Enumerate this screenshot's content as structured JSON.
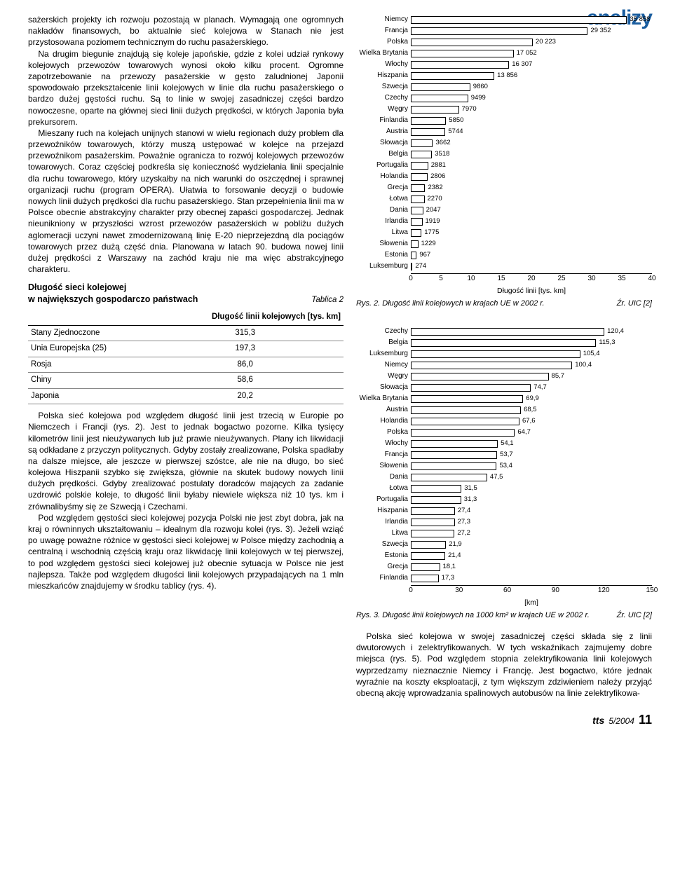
{
  "brand": "analizy",
  "left": {
    "para1": "sażerskich projekty ich rozwoju pozostają w planach. Wymagają one ogromnych nakładów finansowych, bo aktualnie sieć kolejowa w Stanach nie jest przystosowana poziomem technicznym do ruchu pasażerskiego.",
    "para2": "Na drugim biegunie znajdują się koleje japońskie, gdzie z kolei udział rynkowy kolejowych przewozów towarowych wynosi około kilku procent. Ogromne zapotrzebowanie na przewozy pasażerskie w gęsto zaludnionej Japonii spowodowało przekształcenie linii kolejowych w linie dla ruchu pasażerskiego o bardzo dużej gęstości ruchu. Są to linie w swojej zasadniczej części bardzo nowoczesne, oparte na głównej sieci linii dużych prędkości, w których Japonia była prekursorem.",
    "para3": "Mieszany ruch na kolejach unijnych stanowi w wielu regionach duży problem dla przewoźników towarowych, którzy muszą ustępować w kolejce na przejazd przewoźnikom pasażerskim. Poważnie ogranicza to rozwój kolejowych przewozów towarowych. Coraz częściej podkreśla się konieczność wydzielania linii specjalnie dla ruchu towarowego, który uzyskałby na nich warunki do oszczędnej i sprawnej organizacji ruchu (program OPERA). Ułatwia to forsowanie decyzji o budowie nowych linii dużych prędkości dla ruchu pasażerskiego. Stan przepełnienia linii ma w Polsce obecnie abstrakcyjny charakter przy obecnej zapaści gospodarczej. Jednak nieunikniony w przyszłości wzrost przewozów pasażerskich w pobliżu dużych aglomeracji uczyni nawet zmodernizowaną linię E-20 nieprzejezdną dla pociągów towarowych przez dużą część dnia. Planowana w latach 90. budowa nowej linii dużej prędkości z Warszawy na zachód kraju nie ma więc abstrakcyjnego charakteru.",
    "table2_num": "Tablica 2",
    "table2_title": "Długość sieci kolejowej\nw największych gospodarczo państwach",
    "table2_colhead": "Długość linii kolejowych [tys. km]",
    "table2_rows": [
      {
        "country": "Stany Zjednoczone",
        "val": "315,3"
      },
      {
        "country": "Unia Europejska (25)",
        "val": "197,3"
      },
      {
        "country": "Rosja",
        "val": "86,0"
      },
      {
        "country": "Chiny",
        "val": "58,6"
      },
      {
        "country": "Japonia",
        "val": "20,2"
      }
    ],
    "para4": "Polska sieć kolejowa pod względem długość linii jest trzecią w Europie po Niemczech i Francji (rys. 2). Jest to jednak bogactwo pozorne. Kilka tysięcy kilometrów linii jest nieużywanych lub już prawie nieużywanych. Plany ich likwidacji są odkładane z przyczyn politycznych. Gdyby zostały zrealizowane, Polska spadłaby na dalsze miejsce, ale jeszcze w pierwszej szóstce, ale nie na długo, bo sieć kolejowa Hiszpanii szybko się zwiększa, głównie na skutek budowy nowych linii dużych prędkości. Gdyby zrealizować postulaty doradców mających za zadanie uzdrowić polskie koleje, to długość linii byłaby niewiele większa niż 10 tys. km i zrównalibyśmy się ze Szwecją i Czechami.",
    "para5": "Pod względem gęstości sieci kolejowej pozycja Polski nie jest zbyt dobra, jak na kraj o równinnych ukształtowaniu – idealnym dla rozwoju kolei (rys. 3). Jeżeli wziąć po uwagę poważne różnice w gęstości sieci kolejowej w Polsce między zachodnią a centralną i wschodnią częścią kraju oraz likwidację linii kolejowych w tej pierwszej, to pod względem gęstości sieci kolejowej już obecnie sytuacja w Polsce nie jest najlepsza. Także pod względem długości linii kolejowych przypadających na 1 mln mieszkańców znajdujemy w środku tablicy (rys. 4)."
  },
  "chart1": {
    "type": "bar-horizontal",
    "xlim": [
      0,
      40
    ],
    "xticks": [
      0,
      5,
      10,
      15,
      20,
      25,
      30,
      35,
      40
    ],
    "xlabel": "Długość linii [tys. km]",
    "bar_fill": "#ffffff",
    "bar_border": "#000000",
    "data": [
      {
        "cat": "Niemcy",
        "val": 35858,
        "label": "35 858"
      },
      {
        "cat": "Francja",
        "val": 29352,
        "label": "29 352"
      },
      {
        "cat": "Polska",
        "val": 20223,
        "label": "20 223"
      },
      {
        "cat": "Wielka Brytania",
        "val": 17052,
        "label": "17 052"
      },
      {
        "cat": "Włochy",
        "val": 16307,
        "label": "16 307"
      },
      {
        "cat": "Hiszpania",
        "val": 13856,
        "label": "13 856"
      },
      {
        "cat": "Szwecja",
        "val": 9860,
        "label": "9860"
      },
      {
        "cat": "Czechy",
        "val": 9499,
        "label": "9499"
      },
      {
        "cat": "Węgry",
        "val": 7970,
        "label": "7970"
      },
      {
        "cat": "Finlandia",
        "val": 5850,
        "label": "5850"
      },
      {
        "cat": "Austria",
        "val": 5744,
        "label": "5744"
      },
      {
        "cat": "Słowacja",
        "val": 3662,
        "label": "3662"
      },
      {
        "cat": "Belgia",
        "val": 3518,
        "label": "3518"
      },
      {
        "cat": "Portugalia",
        "val": 2881,
        "label": "2881"
      },
      {
        "cat": "Holandia",
        "val": 2806,
        "label": "2806"
      },
      {
        "cat": "Grecja",
        "val": 2382,
        "label": "2382"
      },
      {
        "cat": "Łotwa",
        "val": 2270,
        "label": "2270"
      },
      {
        "cat": "Dania",
        "val": 2047,
        "label": "2047"
      },
      {
        "cat": "Irlandia",
        "val": 1919,
        "label": "1919"
      },
      {
        "cat": "Litwa",
        "val": 1775,
        "label": "1775"
      },
      {
        "cat": "Słowenia",
        "val": 1229,
        "label": "1229"
      },
      {
        "cat": "Estonia",
        "val": 967,
        "label": "967"
      },
      {
        "cat": "Luksemburg",
        "val": 274,
        "label": "274"
      }
    ],
    "caption": "Rys. 2. Długość linii kolejowych w krajach UE w 2002 r.",
    "source": "Źr. UIC [2]"
  },
  "chart2": {
    "type": "bar-horizontal",
    "xlim": [
      0,
      150
    ],
    "xticks": [
      0,
      30,
      60,
      90,
      120,
      150
    ],
    "xlabel": "[km]",
    "bar_fill": "#ffffff",
    "bar_border": "#000000",
    "data": [
      {
        "cat": "Czechy",
        "val": 120.4,
        "label": "120,4"
      },
      {
        "cat": "Belgia",
        "val": 115.3,
        "label": "115,3"
      },
      {
        "cat": "Luksemburg",
        "val": 105.4,
        "label": "105,4"
      },
      {
        "cat": "Niemcy",
        "val": 100.4,
        "label": "100,4"
      },
      {
        "cat": "Węgry",
        "val": 85.7,
        "label": "85,7"
      },
      {
        "cat": "Słowacja",
        "val": 74.7,
        "label": "74,7"
      },
      {
        "cat": "Wielka Brytania",
        "val": 69.9,
        "label": "69,9"
      },
      {
        "cat": "Austria",
        "val": 68.5,
        "label": "68,5"
      },
      {
        "cat": "Holandia",
        "val": 67.6,
        "label": "67,6"
      },
      {
        "cat": "Polska",
        "val": 64.7,
        "label": "64,7"
      },
      {
        "cat": "Włochy",
        "val": 54.1,
        "label": "54,1"
      },
      {
        "cat": "Francja",
        "val": 53.7,
        "label": "53,7"
      },
      {
        "cat": "Słowenia",
        "val": 53.4,
        "label": "53,4"
      },
      {
        "cat": "Dania",
        "val": 47.5,
        "label": "47,5"
      },
      {
        "cat": "Łotwa",
        "val": 31.5,
        "label": "31,5"
      },
      {
        "cat": "Portugalia",
        "val": 31.3,
        "label": "31,3"
      },
      {
        "cat": "Hiszpania",
        "val": 27.4,
        "label": "27,4"
      },
      {
        "cat": "Irlandia",
        "val": 27.3,
        "label": "27,3"
      },
      {
        "cat": "Litwa",
        "val": 27.2,
        "label": "27,2"
      },
      {
        "cat": "Szwecja",
        "val": 21.9,
        "label": "21,9"
      },
      {
        "cat": "Estonia",
        "val": 21.4,
        "label": "21,4"
      },
      {
        "cat": "Grecja",
        "val": 18.1,
        "label": "18,1"
      },
      {
        "cat": "Finlandia",
        "val": 17.3,
        "label": "17,3"
      }
    ],
    "caption": "Rys. 3. Długość linii kolejowych na 1000 km² w krajach UE w 2002 r.",
    "source": "Źr. UIC [2]"
  },
  "right_para": "Polska sieć kolejowa w swojej zasadniczej części składa się z linii dwutorowych i zelektryfikowanych. W tych wskaźnikach zajmujemy dobre miejsca (rys. 5). Pod względem stopnia zelektryfikowania linii kolejowych wyprzedzamy nieznacznie Niemcy i Francję. Jest bogactwo, które jednak wyraźnie na koszty eksploatacji, z tym większym zdziwieniem należy przyjąć obecną akcję wprowadzania spalinowych autobusów na linie zelektryfikowa-",
  "footer": {
    "tts": "tts",
    "issue": "5/2004",
    "page": "11"
  }
}
